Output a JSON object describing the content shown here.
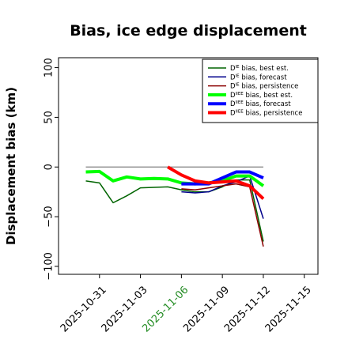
{
  "chart_data": {
    "type": "line",
    "title": "Bias, ice edge displacement",
    "xlabel": "",
    "ylabel": "Displacement bias (km)",
    "xlim": [
      "2025-10-28",
      "2025-11-16"
    ],
    "ylim": [
      -108,
      110
    ],
    "y_ticks": [
      100,
      50,
      0,
      -50,
      -100
    ],
    "y_tick_labels": [
      "100",
      "50",
      "0",
      "−50",
      "−100"
    ],
    "x_ticks": [
      "2025-10-31",
      "2025-11-03",
      "2025-11-06",
      "2025-11-09",
      "2025-11-12",
      "2025-11-15"
    ],
    "x_tick_labels": [
      "2025-10-31",
      "2025-11-03",
      "2025-11-06",
      "2025-11-09",
      "2025-11-12",
      "2025-11-15"
    ],
    "x_tick_colors": [
      "#000000",
      "#000000",
      "#228b22",
      "#000000",
      "#000000",
      "#000000"
    ],
    "grid": false,
    "legend_position": "top-right",
    "reference_line": {
      "y": 0,
      "from": "2025-10-30",
      "to": "2025-11-12",
      "color": "#808080"
    },
    "series": [
      {
        "name": "Dᴵᴱ bias, best est.",
        "name_base": "D",
        "name_sup": "IE",
        "name_rest": " bias, best est.",
        "color": "#006400",
        "width": 1.5,
        "points": [
          [
            "2025-10-30",
            -14
          ],
          [
            "2025-10-31",
            -16
          ],
          [
            "2025-11-01",
            -36
          ],
          [
            "2025-11-02",
            -29
          ],
          [
            "2025-11-03",
            -21
          ],
          [
            "2025-11-04",
            -20.5
          ],
          [
            "2025-11-05",
            -20
          ],
          [
            "2025-11-06",
            -23
          ],
          [
            "2025-11-07",
            -25
          ],
          [
            "2025-11-08",
            -25
          ],
          [
            "2025-11-09",
            -20
          ],
          [
            "2025-11-10",
            -13
          ],
          [
            "2025-11-11",
            -13
          ],
          [
            "2025-11-12",
            -75
          ]
        ]
      },
      {
        "name": "Dᴵᴱ bias, forecast",
        "name_base": "D",
        "name_sup": "IE",
        "name_rest": " bias, forecast",
        "color": "#00008b",
        "width": 1.5,
        "points": [
          [
            "2025-11-06",
            -25
          ],
          [
            "2025-11-07",
            -26
          ],
          [
            "2025-11-08",
            -25
          ],
          [
            "2025-11-09",
            -19
          ],
          [
            "2025-11-10",
            -15
          ],
          [
            "2025-11-11",
            -9
          ],
          [
            "2025-11-12",
            -52
          ]
        ]
      },
      {
        "name": "Dᴵᴱ bias, persistence",
        "name_base": "D",
        "name_sup": "IE",
        "name_rest": " bias, persistence",
        "color": "#8b0000",
        "width": 1.5,
        "points": [
          [
            "2025-11-06",
            -22
          ],
          [
            "2025-11-07",
            -23
          ],
          [
            "2025-11-08",
            -21
          ],
          [
            "2025-11-09",
            -19
          ],
          [
            "2025-11-10",
            -17
          ],
          [
            "2025-11-11",
            -20
          ],
          [
            "2025-11-12",
            -80
          ]
        ]
      },
      {
        "name": "Dᴵᴵᴱ bias, best est.",
        "name_base": "D",
        "name_sup": "IIEE",
        "name_rest": " bias, best est.",
        "color": "#00ff00",
        "width": 4,
        "points": [
          [
            "2025-10-30",
            -5
          ],
          [
            "2025-10-31",
            -4.5
          ],
          [
            "2025-11-01",
            -14
          ],
          [
            "2025-11-02",
            -10
          ],
          [
            "2025-11-03",
            -12
          ],
          [
            "2025-11-04",
            -11.5
          ],
          [
            "2025-11-05",
            -12
          ],
          [
            "2025-11-06",
            -16
          ],
          [
            "2025-11-07",
            -17
          ],
          [
            "2025-11-08",
            -16
          ],
          [
            "2025-11-09",
            -14
          ],
          [
            "2025-11-10",
            -9
          ],
          [
            "2025-11-11",
            -9
          ],
          [
            "2025-11-12",
            -19
          ]
        ]
      },
      {
        "name": "Dᴵᴵᴱ bias, forecast",
        "name_base": "D",
        "name_sup": "IIEE",
        "name_rest": " bias, forecast",
        "color": "#0000ff",
        "width": 4,
        "points": [
          [
            "2025-11-06",
            -17
          ],
          [
            "2025-11-07",
            -17
          ],
          [
            "2025-11-08",
            -17
          ],
          [
            "2025-11-09",
            -11
          ],
          [
            "2025-11-10",
            -5
          ],
          [
            "2025-11-11",
            -5
          ],
          [
            "2025-11-12",
            -11
          ]
        ]
      },
      {
        "name": "Dᴵᴵᴱ bias, persistence",
        "name_base": "D",
        "name_sup": "IIEE",
        "name_rest": " bias, persistence",
        "color": "#ff0000",
        "width": 4,
        "points": [
          [
            "2025-11-05",
            0
          ],
          [
            "2025-11-06",
            -8
          ],
          [
            "2025-11-07",
            -14
          ],
          [
            "2025-11-08",
            -16
          ],
          [
            "2025-11-09",
            -15
          ],
          [
            "2025-11-10",
            -14
          ],
          [
            "2025-11-11",
            -19
          ],
          [
            "2025-11-12",
            -32
          ]
        ]
      }
    ]
  }
}
